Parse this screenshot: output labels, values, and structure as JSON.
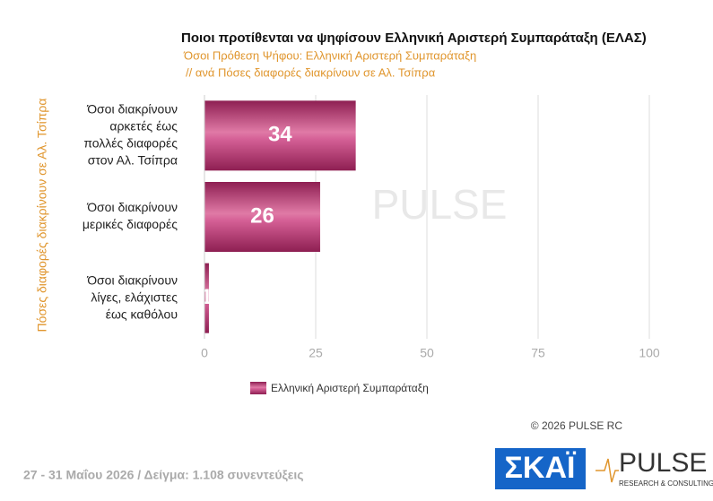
{
  "chart_data": {
    "type": "bar",
    "orientation": "horizontal",
    "title": "Ποιοι προτίθενται να ψηφίσουν Ελληνική Αριστερή Συμπαράταξη (ΕΛΑΣ)",
    "subtitle": [
      "Όσοι Πρόθεση Ψήφου: Ελληνική Αριστερή Συμπαράταξη",
      "// ανά Πόσες διαφορές διακρίνουν σε Αλ. Τσίπρα"
    ],
    "y_axis_label": "Πόσες διαφορές διακρίνουν σε Αλ. Τσίπρα",
    "categories": [
      [
        "Όσοι διακρίνουν",
        "αρκετές έως",
        "πολλές διαφορές",
        "στον Αλ. Τσίπρα"
      ],
      [
        "Όσοι διακρίνουν",
        "μερικές διαφορές"
      ],
      [
        "Όσοι διακρίνουν",
        "λίγες, ελάχιστες",
        "έως καθόλου"
      ]
    ],
    "series": [
      {
        "name": "Ελληνική Αριστερή Συμπαράταξη",
        "color": "#b8306e",
        "values": [
          34,
          26,
          1
        ]
      }
    ],
    "xlim": [
      0,
      100
    ],
    "xticks": [
      0,
      25,
      50,
      75,
      100
    ],
    "grid": true,
    "watermark": "PULSE",
    "copyright": "© 2026 PULSE RC",
    "footer": "27 - 31 Μαΐου 2026 / Δείγμα: 1.108 συνεντεύξεις",
    "logos": {
      "skai": "ΣΚΑΪ",
      "pulse": "PULSE",
      "pulse_sub": "RESEARCH & CONSULTING"
    }
  }
}
